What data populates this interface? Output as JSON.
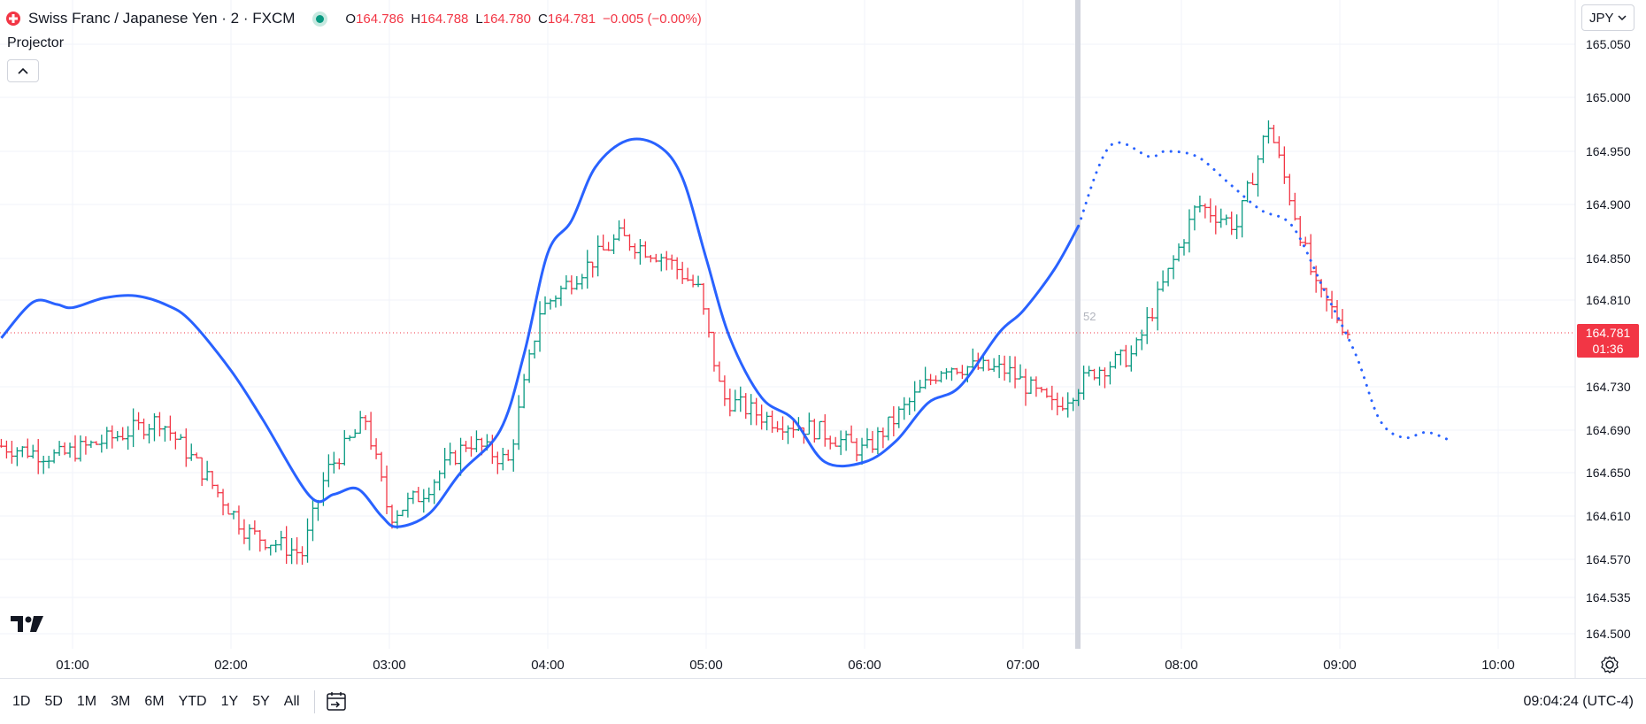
{
  "header": {
    "symbol_title": "Swiss Franc / Japanese Yen · 2 · FXCM",
    "ohlc": {
      "o_label": "O",
      "o_value": "164.786",
      "h_label": "H",
      "h_value": "164.788",
      "l_label": "L",
      "l_value": "164.780",
      "c_label": "C",
      "c_value": "164.781",
      "change": "−0.005 (−0.00%)"
    },
    "indicator_name": "Projector",
    "currency": "JPY"
  },
  "price_tag": {
    "price": "164.781",
    "countdown": "01:36"
  },
  "bar_marker_label": "52",
  "bottom_bar": {
    "ranges": [
      "1D",
      "5D",
      "1M",
      "3M",
      "6M",
      "YTD",
      "1Y",
      "5Y",
      "All"
    ],
    "clock": "09:04:24 (UTC-4)"
  },
  "colors": {
    "up": "#089981",
    "down": "#f23645",
    "projector": "#2962ff",
    "accent": "#f23645"
  },
  "chart_data": {
    "type": "line",
    "title": "Swiss Franc / Japanese Yen · 2 · FXCM",
    "y_ticks": [
      "165.050",
      "165.000",
      "164.950",
      "164.900",
      "164.850",
      "164.810",
      "164.730",
      "164.690",
      "164.650",
      "164.610",
      "164.570",
      "164.535",
      "164.500"
    ],
    "x_ticks": [
      "01:00",
      "02:00",
      "03:00",
      "04:00",
      "05:00",
      "06:00",
      "07:00",
      "08:00",
      "09:00",
      "10:00"
    ],
    "x_range_hours": [
      0.55,
      10.95
    ],
    "last_price": 164.781,
    "projector_series": {
      "name": "Projector",
      "solid": [
        [
          0.55,
          164.775
        ],
        [
          0.75,
          164.808
        ],
        [
          0.9,
          164.806
        ],
        [
          1.0,
          164.803
        ],
        [
          1.2,
          164.812
        ],
        [
          1.4,
          164.814
        ],
        [
          1.6,
          164.805
        ],
        [
          1.75,
          164.79
        ],
        [
          2.0,
          164.745
        ],
        [
          2.2,
          164.7
        ],
        [
          2.5,
          164.628
        ],
        [
          2.65,
          164.63
        ],
        [
          2.8,
          164.635
        ],
        [
          2.95,
          164.61
        ],
        [
          3.05,
          164.6
        ],
        [
          3.25,
          164.612
        ],
        [
          3.45,
          164.65
        ],
        [
          3.7,
          164.69
        ],
        [
          3.85,
          164.76
        ],
        [
          4.0,
          164.855
        ],
        [
          4.15,
          164.885
        ],
        [
          4.3,
          164.935
        ],
        [
          4.5,
          164.96
        ],
        [
          4.7,
          164.955
        ],
        [
          4.85,
          164.925
        ],
        [
          5.0,
          164.85
        ],
        [
          5.15,
          164.775
        ],
        [
          5.35,
          164.72
        ],
        [
          5.55,
          164.7
        ],
        [
          5.75,
          164.66
        ],
        [
          6.0,
          164.66
        ],
        [
          6.2,
          164.68
        ],
        [
          6.4,
          164.715
        ],
        [
          6.6,
          164.73
        ],
        [
          6.85,
          164.78
        ],
        [
          7.0,
          164.8
        ],
        [
          7.2,
          164.84
        ],
        [
          7.35,
          164.88
        ]
      ],
      "dotted": [
        [
          7.35,
          164.88
        ],
        [
          7.55,
          164.955
        ],
        [
          7.8,
          164.945
        ],
        [
          7.9,
          164.95
        ],
        [
          8.1,
          164.945
        ],
        [
          8.3,
          164.92
        ],
        [
          8.5,
          164.895
        ],
        [
          8.7,
          164.88
        ],
        [
          8.9,
          164.82
        ],
        [
          9.1,
          164.76
        ],
        [
          9.25,
          164.7
        ],
        [
          9.4,
          164.683
        ],
        [
          9.55,
          164.688
        ],
        [
          9.7,
          164.68
        ]
      ]
    }
  }
}
